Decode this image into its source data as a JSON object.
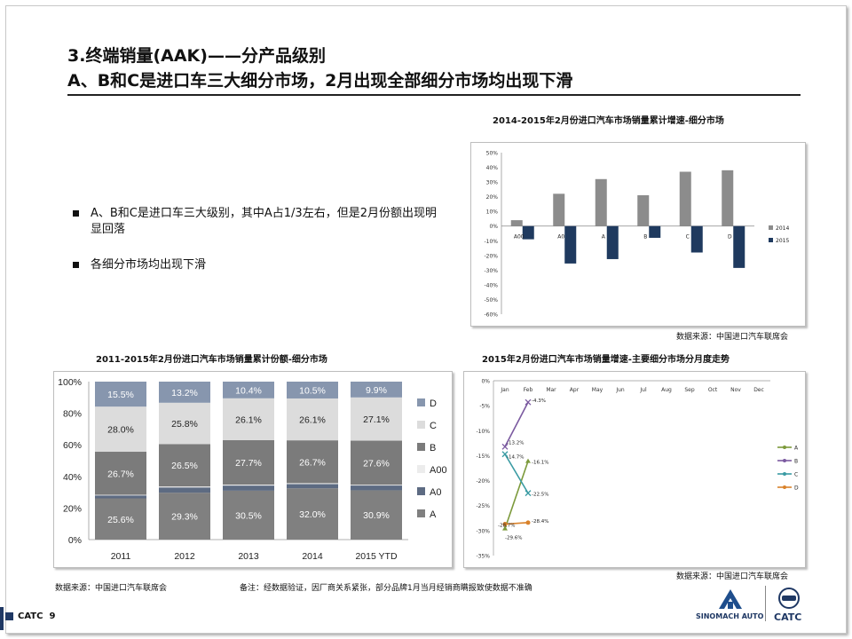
{
  "page": {
    "title_line1": "3.终端销量(AAK)——分产品级别",
    "title_line2": "A、B和C是进口车三大细分市场，2月出现全部细分市场均出现下滑",
    "bullets": [
      "A、B和C是进口车三大级别，其中A占1/3左右，但是2月份额出现明显回落",
      "各细分市场均出现下滑"
    ],
    "footer_brand": "CATC",
    "page_number": "9",
    "logo_sinomach": "SINOMACH AUTO",
    "logo_catc": "CATC",
    "note": "备注：经数据验证，因厂商关系紧张，部分品牌1月当月经销商瞒报致使数据不准确"
  },
  "colors": {
    "gray_2014": "#8c8c8c",
    "navy_2015": "#1f3a5f",
    "seg_D": "#8796ae",
    "seg_C": "#dcdcdc",
    "seg_B": "#7b7b7b",
    "seg_A00": "#ececec",
    "seg_A0": "#5d6b82",
    "seg_A": "#808080",
    "line_A": "#7c9a3b",
    "line_B": "#7b5aa0",
    "line_C": "#3a9ba3",
    "line_D": "#d9822b"
  },
  "chart_data": [
    {
      "id": "growth_bar",
      "type": "bar",
      "title": "2014-2015年2月份进口汽车市场销量累计增速-细分市场",
      "categories": [
        "A00",
        "A0",
        "A",
        "B",
        "C",
        "D"
      ],
      "series": [
        {
          "name": "2014",
          "values": [
            4,
            22,
            32,
            21,
            37,
            38
          ]
        },
        {
          "name": "2015",
          "values": [
            -9,
            -25.5,
            -22.5,
            -8,
            -18,
            -28.5
          ]
        }
      ],
      "ylim": [
        -60,
        50
      ],
      "yticks": [
        "50%",
        "40%",
        "30%",
        "20%",
        "10%",
        "0%",
        "-10%",
        "-20%",
        "-30%",
        "-40%",
        "-50%",
        "-60%"
      ],
      "ytick_values": [
        50,
        40,
        30,
        20,
        10,
        0,
        -10,
        -20,
        -30,
        -40,
        -50,
        -60
      ],
      "source": "数据来源：中国进口汽车联席会"
    },
    {
      "id": "share_stacked",
      "type": "bar",
      "stacked": true,
      "title": "2011-2015年2月份进口汽车市场销量累计份额-细分市场",
      "categories": [
        "2011",
        "2012",
        "2013",
        "2014",
        "2015 YTD"
      ],
      "series": [
        {
          "name": "A",
          "values": [
            25.6,
            29.3,
            30.5,
            32.0,
            30.9
          ],
          "labels": [
            "25.6%",
            "29.3%",
            "30.5%",
            "32.0%",
            "30.9%"
          ]
        },
        {
          "name": "A0",
          "values": [
            1.8,
            3.3,
            3.2,
            2.6,
            3.0
          ],
          "labels": []
        },
        {
          "name": "A00",
          "values": [
            0.4,
            0.6,
            0.6,
            0.6,
            0.5
          ],
          "labels": []
        },
        {
          "name": "B",
          "values": [
            26.7,
            26.5,
            27.7,
            26.7,
            27.6
          ],
          "labels": [
            "26.7%",
            "26.5%",
            "27.7%",
            "26.7%",
            "27.6%"
          ]
        },
        {
          "name": "C",
          "values": [
            28.0,
            25.8,
            26.1,
            26.1,
            27.1
          ],
          "labels": [
            "28.0%",
            "25.8%",
            "26.1%",
            "26.1%",
            "27.1%"
          ]
        },
        {
          "name": "D",
          "values": [
            15.5,
            13.2,
            10.4,
            10.5,
            9.9
          ],
          "labels": [
            "15.5%",
            "13.2%",
            "10.4%",
            "10.5%",
            "9.9%"
          ]
        }
      ],
      "legend": [
        "D",
        "C",
        "B",
        "A00",
        "A0",
        "A"
      ],
      "ylim": [
        0,
        100
      ],
      "yticks": [
        "0%",
        "20%",
        "40%",
        "60%",
        "80%",
        "100%"
      ],
      "ytick_values": [
        0,
        20,
        40,
        60,
        80,
        100
      ],
      "source": "数据来源：中国进口汽车联席会"
    },
    {
      "id": "monthly_line",
      "type": "line",
      "title": "2015年2月份进口汽车市场销量增速-主要细分市场分月度走势",
      "months": [
        "Jan",
        "Feb",
        "Mar",
        "Apr",
        "May",
        "Jun",
        "Jul",
        "Aug",
        "Sep",
        "Oct",
        "Nov",
        "Dec"
      ],
      "series": [
        {
          "name": "A",
          "values": [
            -29.6,
            -16.1
          ],
          "labels": [
            "-29.6%",
            "-16.1%"
          ]
        },
        {
          "name": "B",
          "values": [
            -13.2,
            -4.3
          ],
          "labels": [
            "-13.2%",
            "-4.3%"
          ]
        },
        {
          "name": "C",
          "values": [
            -14.7,
            -22.5
          ],
          "labels": [
            "-14.7%",
            "-22.5%"
          ]
        },
        {
          "name": "D",
          "values": [
            -28.7,
            -28.4
          ],
          "labels": [
            "-28.7%",
            "-28.4%"
          ]
        }
      ],
      "ylim": [
        -35,
        0
      ],
      "yticks": [
        "0%",
        "-5%",
        "-10%",
        "-15%",
        "-20%",
        "-25%",
        "-30%",
        "-35%"
      ],
      "ytick_values": [
        0,
        -5,
        -10,
        -15,
        -20,
        -25,
        -30,
        -35
      ],
      "source": "数据来源：中国进口汽车联席会"
    }
  ]
}
